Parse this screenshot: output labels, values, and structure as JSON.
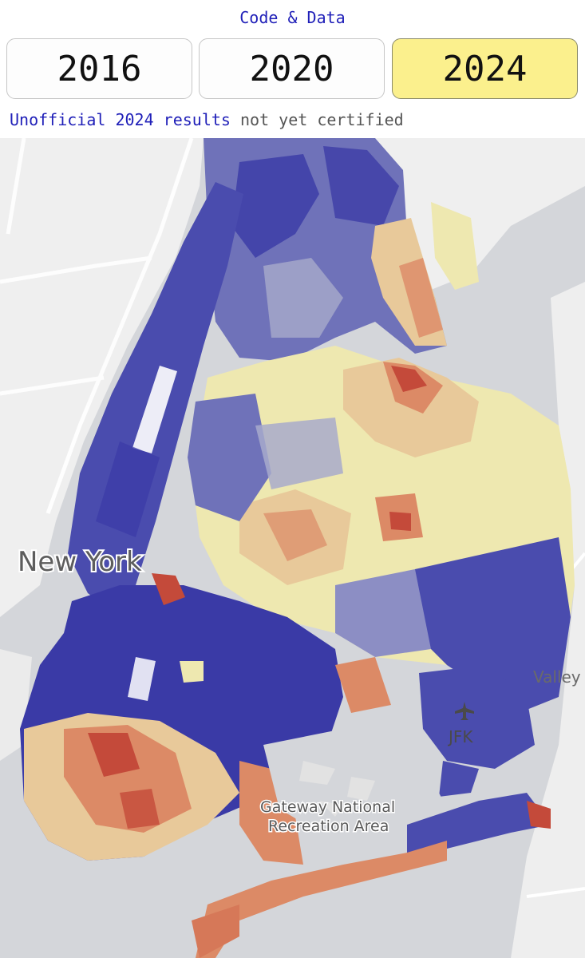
{
  "header": {
    "code_link": "Code & Data"
  },
  "years": [
    {
      "label": "2016",
      "active": false
    },
    {
      "label": "2020",
      "active": false
    },
    {
      "label": "2024",
      "active": true
    }
  ],
  "status": {
    "link_text": "Unofficial 2024 results",
    "note": "not yet certified"
  },
  "map": {
    "labels": {
      "city": "New York",
      "airport": "JFK",
      "park_line1": "Gateway National",
      "park_line2": "Recreation Area",
      "edge": "Valley"
    },
    "colors": {
      "water": "#d4d6da",
      "land": "#eeeeee",
      "strong_dem": "#3a3aa6",
      "dem": "#6f72b9",
      "lean_dem": "#a8aacb",
      "neutral": "#eee8b0",
      "lean_rep": "#e8c99a",
      "rep": "#dc8a66",
      "strong_rep": "#c44a3a"
    }
  }
}
